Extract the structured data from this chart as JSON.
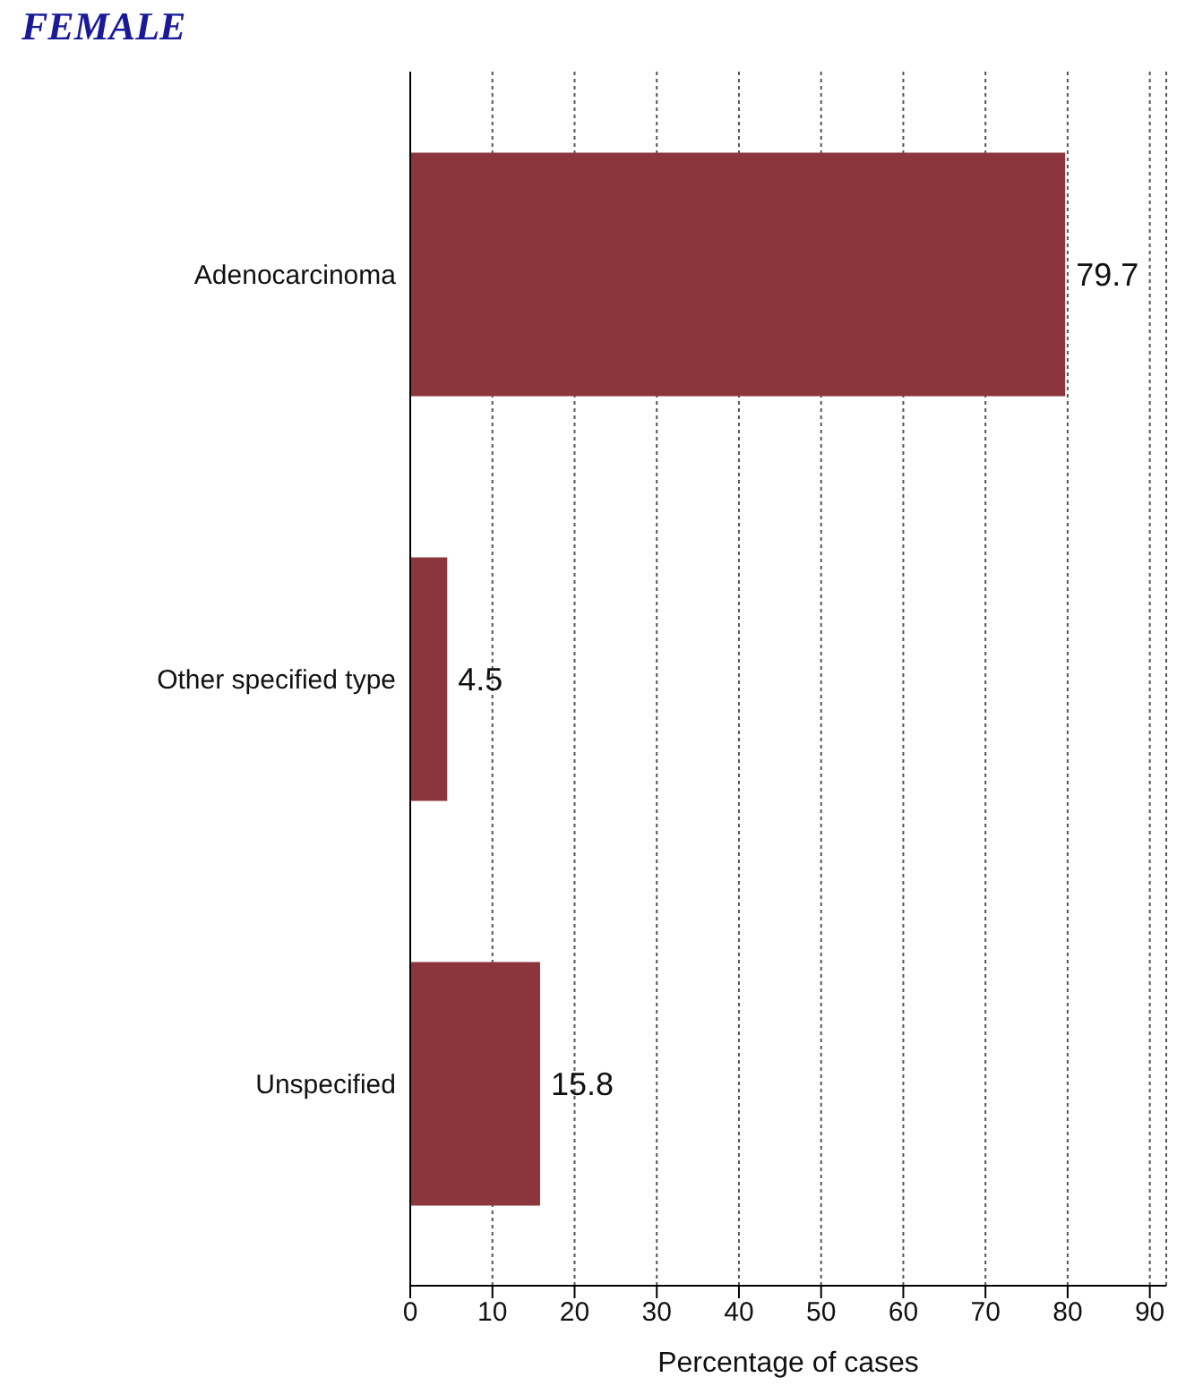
{
  "chart_data": {
    "type": "bar",
    "orientation": "horizontal",
    "title": "FEMALE",
    "xlabel": "Percentage of cases",
    "categories": [
      "Adenocarcinoma",
      "Other specified type",
      "Unspecified"
    ],
    "values": [
      79.7,
      4.5,
      15.8
    ],
    "color": "#8c353c",
    "xlim": [
      0,
      92
    ],
    "xticks": [
      0,
      10,
      20,
      30,
      40,
      50,
      60,
      70,
      80,
      90
    ],
    "grid": "x",
    "data_labels": true
  }
}
